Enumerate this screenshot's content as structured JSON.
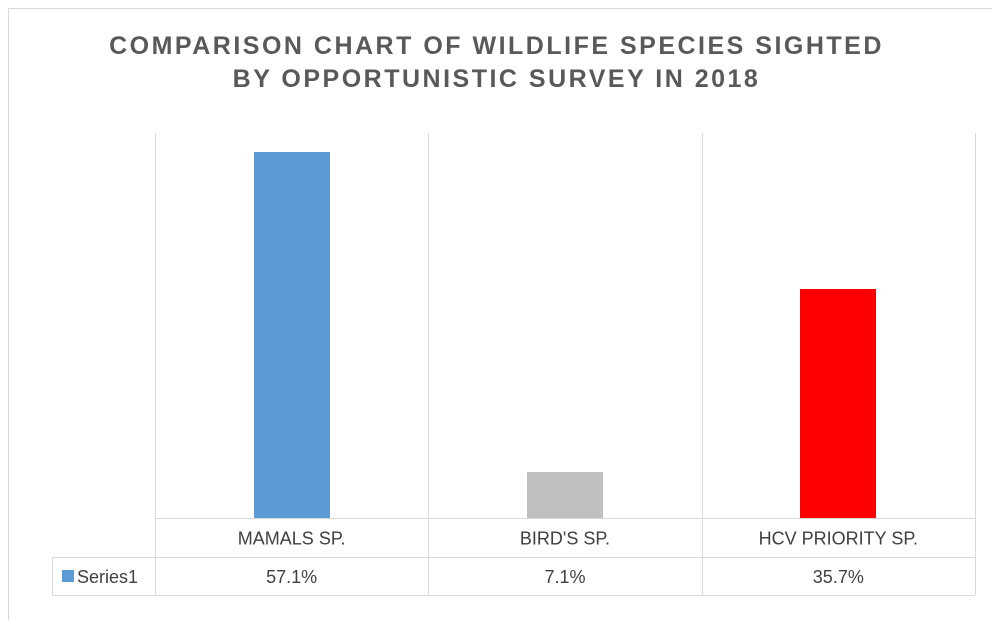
{
  "chart_data": {
    "type": "bar",
    "title_lines": [
      "COMPARISON CHART OF WILDLIFE SPECIES SIGHTED",
      "BY OPPORTUNISTIC SURVEY IN 2018"
    ],
    "categories": [
      "MAMALS SP.",
      "BIRD'S SP.",
      "HCV PRIORITY SP."
    ],
    "series": [
      {
        "name": "Series1",
        "values": [
          57.1,
          7.1,
          35.7
        ],
        "value_labels": [
          "57.1%",
          "7.1%",
          "35.7%"
        ]
      }
    ],
    "bar_colors": [
      "#5b9bd5",
      "#bfbfbf",
      "#ff0000"
    ],
    "legend_color": "#5b9bd5",
    "data_table": true,
    "ylim": [
      0,
      60
    ],
    "grid": "vertical-category-separators"
  }
}
